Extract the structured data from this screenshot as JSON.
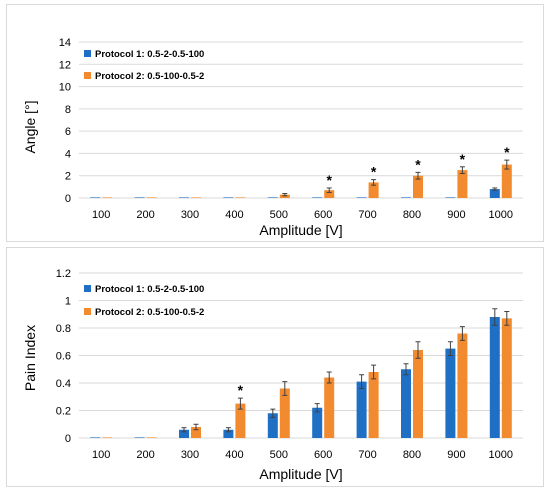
{
  "colors": {
    "protocol1": "#1f6fc5",
    "protocol2": "#f28a30",
    "grid": "#d9d9d9",
    "error": "#404040"
  },
  "chart_data": [
    {
      "type": "bar",
      "xlabel": "Amplitude [V]",
      "ylabel": "Angle [°]",
      "ylim": [
        0,
        14
      ],
      "yticks": [
        0,
        2,
        4,
        6,
        8,
        10,
        12,
        14
      ],
      "grid": true,
      "legend_position": "top-left",
      "categories": [
        "100",
        "200",
        "300",
        "400",
        "500",
        "600",
        "700",
        "800",
        "900",
        "1000"
      ],
      "series": [
        {
          "name": "Protocol 1: 0.5-2-0.5-100",
          "values": [
            0,
            0,
            0,
            0,
            0,
            0,
            0,
            0,
            0,
            0.8
          ],
          "errors": [
            0,
            0,
            0,
            0,
            0,
            0,
            0,
            0,
            0,
            0.1
          ]
        },
        {
          "name": "Protocol 2: 0.5-100-0.5-2",
          "values": [
            0,
            0,
            0,
            0,
            0.3,
            0.7,
            1.4,
            2.0,
            2.5,
            3.0
          ],
          "errors": [
            0,
            0,
            0,
            0,
            0.1,
            0.2,
            0.25,
            0.3,
            0.3,
            0.4
          ]
        }
      ],
      "annotations": [
        {
          "category": "600",
          "series": 1,
          "text": "*"
        },
        {
          "category": "700",
          "series": 1,
          "text": "*"
        },
        {
          "category": "800",
          "series": 1,
          "text": "*"
        },
        {
          "category": "900",
          "series": 1,
          "text": "*"
        },
        {
          "category": "1000",
          "series": 1,
          "text": "*"
        }
      ]
    },
    {
      "type": "bar",
      "xlabel": "Amplitude [V]",
      "ylabel": "Pain Index",
      "ylim": [
        0,
        1.2
      ],
      "yticks": [
        "0",
        "0.2",
        "0.4",
        "0.6",
        "0.8",
        "1",
        "1.2"
      ],
      "grid": true,
      "legend_position": "top-left",
      "categories": [
        "100",
        "200",
        "300",
        "400",
        "500",
        "600",
        "700",
        "800",
        "900",
        "1000"
      ],
      "series": [
        {
          "name": "Protocol 1: 0.5-2-0.5-100",
          "values": [
            0,
            0,
            0.06,
            0.06,
            0.18,
            0.22,
            0.41,
            0.5,
            0.65,
            0.88
          ],
          "errors": [
            0,
            0,
            0.015,
            0.015,
            0.03,
            0.03,
            0.05,
            0.04,
            0.05,
            0.06
          ]
        },
        {
          "name": "Protocol 2: 0.5-100-0.5-2",
          "values": [
            0,
            0,
            0.08,
            0.25,
            0.36,
            0.44,
            0.48,
            0.64,
            0.76,
            0.87
          ],
          "errors": [
            0,
            0,
            0.02,
            0.04,
            0.05,
            0.04,
            0.05,
            0.06,
            0.05,
            0.05
          ]
        }
      ],
      "annotations": [
        {
          "category": "400",
          "series": 1,
          "text": "*"
        }
      ]
    }
  ]
}
